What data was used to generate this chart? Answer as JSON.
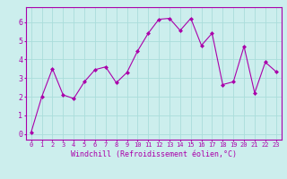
{
  "x": [
    0,
    1,
    2,
    3,
    4,
    5,
    6,
    7,
    8,
    9,
    10,
    11,
    12,
    13,
    14,
    15,
    16,
    17,
    18,
    19,
    20,
    21,
    22,
    23
  ],
  "y": [
    0.1,
    2.0,
    3.5,
    2.1,
    1.9,
    2.8,
    3.45,
    3.6,
    2.75,
    3.3,
    4.45,
    5.4,
    6.15,
    6.2,
    5.55,
    6.2,
    4.75,
    5.4,
    2.65,
    2.8,
    4.7,
    2.2,
    3.85,
    3.35
  ],
  "line_color": "#aa00aa",
  "marker": "D",
  "marker_size": 2.0,
  "bg_color": "#cceeed",
  "grid_color": "#aadddb",
  "xlabel": "Windchill (Refroidissement éolien,°C)",
  "xlabel_color": "#aa00aa",
  "tick_color": "#aa00aa",
  "spine_color": "#aa00aa",
  "ylim": [
    -0.3,
    6.8
  ],
  "xlim": [
    -0.5,
    23.5
  ],
  "yticks": [
    0,
    1,
    2,
    3,
    4,
    5,
    6
  ],
  "xtick_labels": [
    "0",
    "1",
    "2",
    "3",
    "4",
    "5",
    "6",
    "7",
    "8",
    "9",
    "10",
    "11",
    "12",
    "13",
    "14",
    "15",
    "16",
    "17",
    "18",
    "19",
    "20",
    "21",
    "22",
    "23"
  ],
  "xlabel_fontsize": 6.0,
  "xtick_fontsize": 5.0,
  "ytick_fontsize": 6.0
}
